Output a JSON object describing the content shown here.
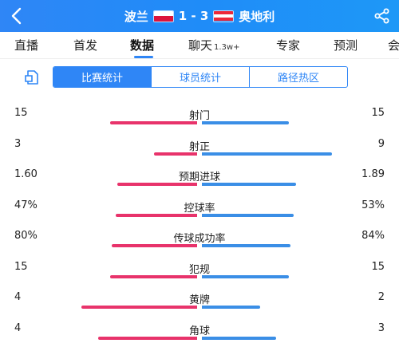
{
  "header": {
    "home_team": "波兰",
    "away_team": "奥地利",
    "score": "1 - 3",
    "bg_color": "#2f86f6"
  },
  "tabs": [
    {
      "label": "直播"
    },
    {
      "label": "首发"
    },
    {
      "label": "数据"
    },
    {
      "label": "聊天",
      "badge": "1.3w+"
    },
    {
      "label": "专家"
    },
    {
      "label": "预测"
    },
    {
      "label": "会"
    }
  ],
  "active_tab": "数据",
  "segments": [
    {
      "label": "比赛统计"
    },
    {
      "label": "球员统计"
    },
    {
      "label": "路径热区"
    }
  ],
  "active_segment": "比赛统计",
  "colors": {
    "home_bar": "#e8336b",
    "away_bar": "#3a8ee6",
    "accent": "#2f86f6"
  },
  "stats": [
    {
      "label": "射门",
      "home": "15",
      "away": "15",
      "home_share": 0.5,
      "away_share": 0.5
    },
    {
      "label": "射正",
      "home": "3",
      "away": "9",
      "home_share": 0.25,
      "away_share": 0.75
    },
    {
      "label": "预期进球",
      "home": "1.60",
      "away": "1.89",
      "home_share": 0.46,
      "away_share": 0.54
    },
    {
      "label": "控球率",
      "home": "47%",
      "away": "53%",
      "home_share": 0.47,
      "away_share": 0.53
    },
    {
      "label": "传球成功率",
      "home": "80%",
      "away": "84%",
      "home_share": 0.49,
      "away_share": 0.51
    },
    {
      "label": "犯规",
      "home": "15",
      "away": "15",
      "home_share": 0.5,
      "away_share": 0.5
    },
    {
      "label": "黄牌",
      "home": "4",
      "away": "2",
      "home_share": 0.667,
      "away_share": 0.333
    },
    {
      "label": "角球",
      "home": "4",
      "away": "3",
      "home_share": 0.571,
      "away_share": 0.429
    }
  ]
}
